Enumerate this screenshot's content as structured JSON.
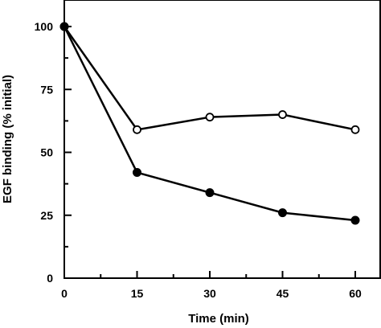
{
  "chart_data": {
    "type": "line",
    "title": "",
    "xlabel": "Time (min)",
    "ylabel": "EGF binding (% initial)",
    "x": [
      0,
      15,
      30,
      45,
      60
    ],
    "xlim": [
      0,
      60
    ],
    "ylim": [
      0,
      100
    ],
    "xticks": [
      "0",
      "15",
      "30",
      "45",
      "60"
    ],
    "yticks": [
      "0",
      "25",
      "50",
      "75",
      "100"
    ],
    "grid": false,
    "legend": "none",
    "series": [
      {
        "marker": "open-circle",
        "values": [
          100,
          59,
          64,
          65,
          59
        ]
      },
      {
        "marker": "filled-circle",
        "values": [
          100,
          42,
          34,
          26,
          23
        ]
      }
    ],
    "colors": {
      "line": "#000000",
      "open_marker_fill": "#ffffff",
      "filled_marker_fill": "#000000"
    }
  }
}
